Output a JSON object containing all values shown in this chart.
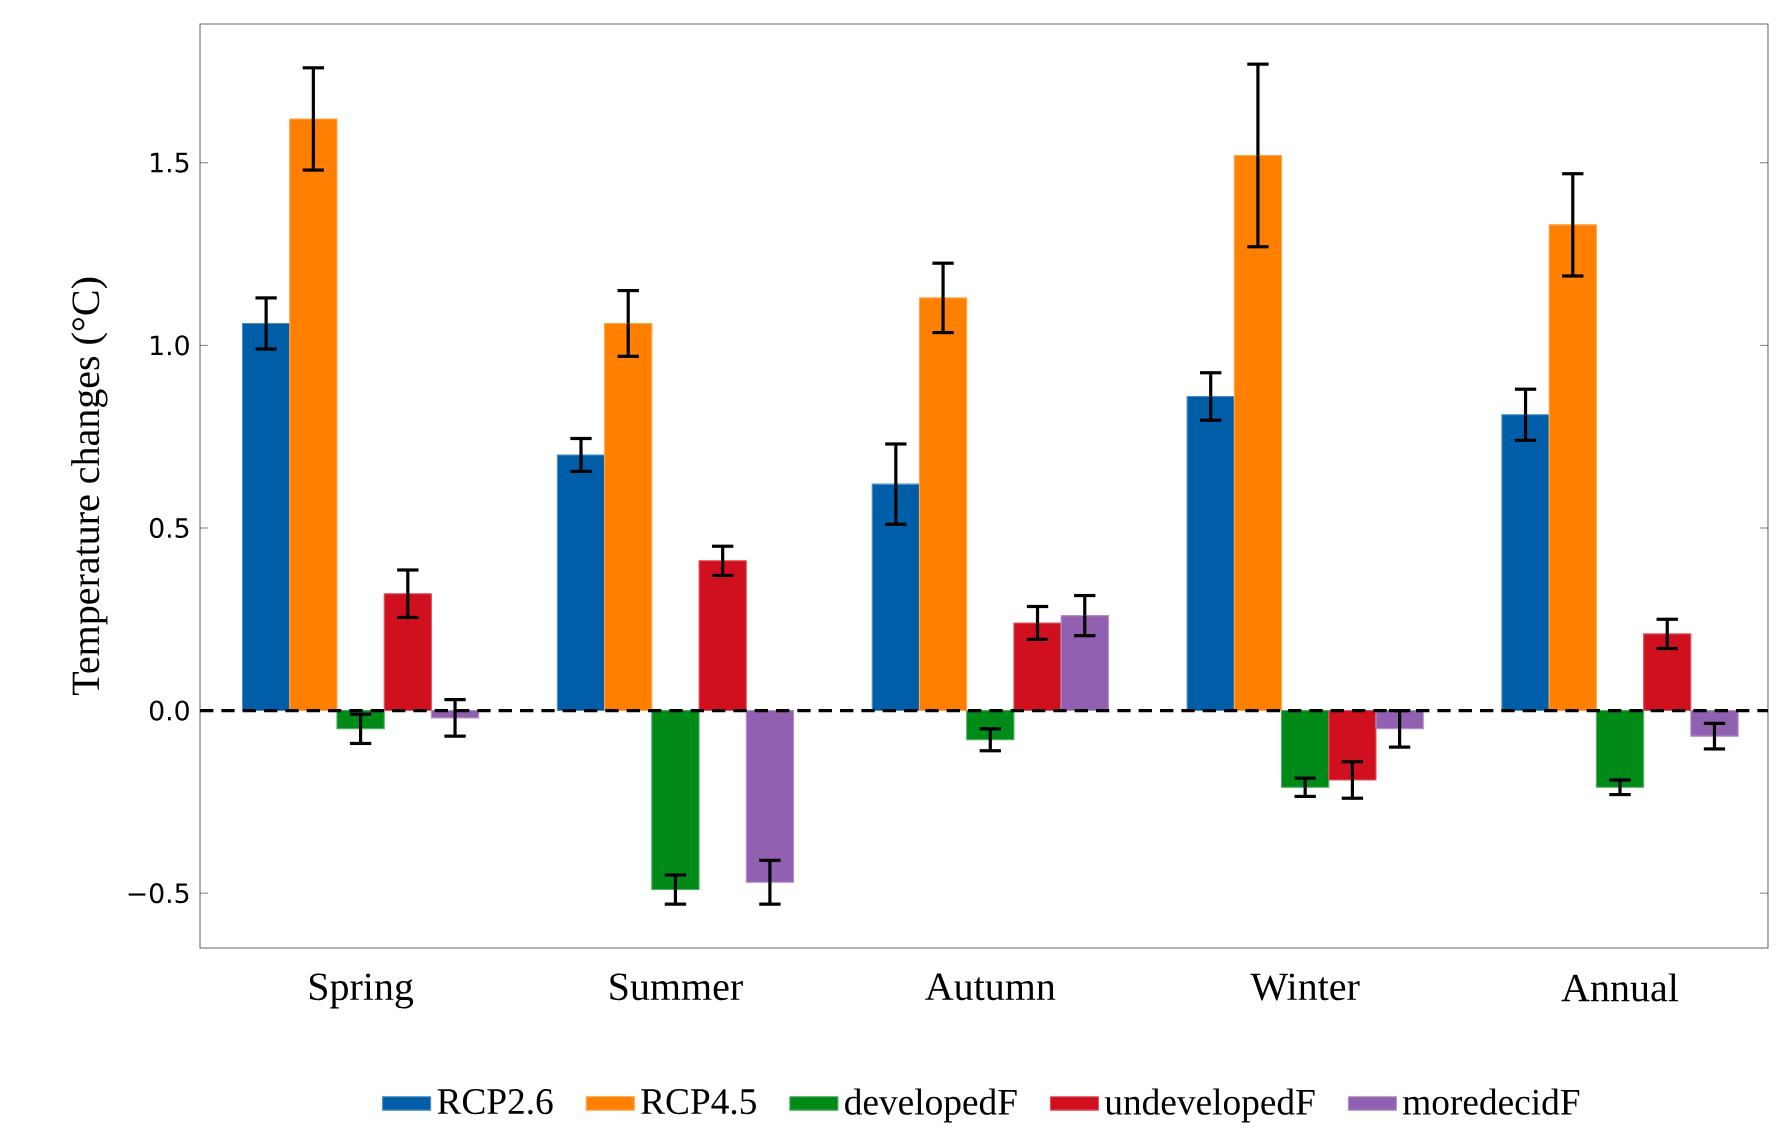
{
  "chart_data": {
    "type": "bar",
    "ylabel": "Temperature changes (°C)",
    "categories": [
      "Spring",
      "Summer",
      "Autumn",
      "Winter",
      "Annual"
    ],
    "series": [
      {
        "name": "RCP2.6",
        "color": "#005ea8",
        "values": [
          1.06,
          0.7,
          0.62,
          0.86,
          0.81
        ],
        "errors": [
          0.07,
          0.045,
          0.11,
          0.065,
          0.07
        ]
      },
      {
        "name": "RCP4.5",
        "color": "#ff7f00",
        "values": [
          1.62,
          1.06,
          1.13,
          1.52,
          1.33
        ],
        "errors": [
          0.14,
          0.09,
          0.095,
          0.25,
          0.14
        ]
      },
      {
        "name": "developedF",
        "color": "#008a17",
        "values": [
          -0.05,
          -0.49,
          -0.08,
          -0.21,
          -0.21
        ],
        "errors": [
          0.04,
          0.04,
          0.03,
          0.025,
          0.02
        ]
      },
      {
        "name": "undevelopedF",
        "color": "#d0101f",
        "values": [
          0.32,
          0.41,
          0.24,
          -0.19,
          0.21
        ],
        "errors": [
          0.065,
          0.04,
          0.045,
          0.05,
          0.04
        ]
      },
      {
        "name": "moredecidF",
        "color": "#9160b0",
        "values": [
          -0.02,
          -0.47,
          0.26,
          -0.05,
          -0.07
        ],
        "errors": [
          0.05,
          0.06,
          0.055,
          0.05,
          0.035
        ]
      }
    ],
    "ylim": [
      -0.65,
      1.88
    ],
    "yticks": [
      {
        "value": -0.5,
        "label": "−0.5"
      },
      {
        "value": 0,
        "label": "0.0"
      },
      {
        "value": 0.5,
        "label": "0.5"
      },
      {
        "value": 1.0,
        "label": "1.0"
      },
      {
        "value": 1.5,
        "label": "1.5"
      }
    ],
    "ref_lines": [
      {
        "axis": "y",
        "value": 0,
        "color": "#000000",
        "line_style": "dashed"
      }
    ],
    "grid": false,
    "legend": "bottom"
  }
}
